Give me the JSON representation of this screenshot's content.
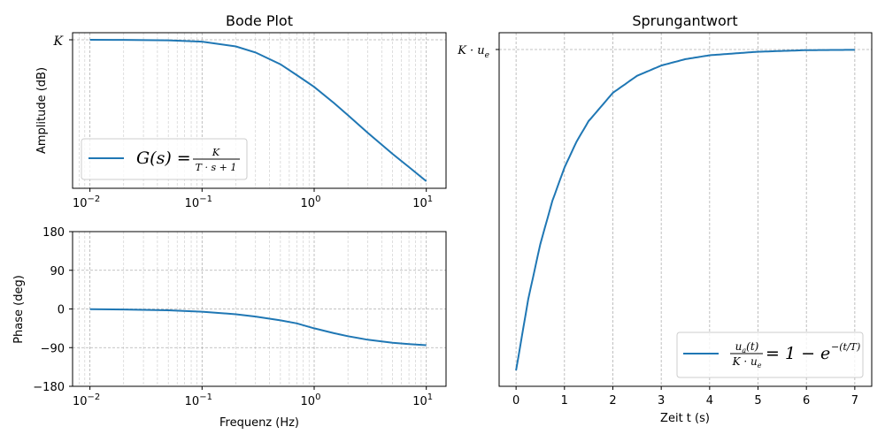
{
  "colors": {
    "series": "#1f77b4"
  },
  "chart_data": [
    {
      "type": "line",
      "title": "Bode Plot",
      "xlabel": "",
      "ylabel": "Amplitude (dB)",
      "xscale": "log",
      "xlim": [
        0.007,
        15
      ],
      "x_tick_labels": [
        "10",
        "10",
        "10",
        "10"
      ],
      "x_tick_exponents": [
        "−2",
        "−1",
        "0",
        "1"
      ],
      "y_tick_labels": [
        "K"
      ],
      "grid": true,
      "legend_position": "lower-left",
      "legend": {
        "lhs": "G(s) =",
        "num": "K",
        "den": "T · s + 1"
      },
      "series": [
        {
          "x": [
            0.01,
            0.02,
            0.05,
            0.1,
            0.2,
            0.3,
            0.5,
            0.7,
            1.0,
            1.5,
            2.0,
            3.0,
            5.0,
            7.0,
            10.0
          ],
          "y_db": [
            0,
            -0.02,
            -0.11,
            -0.4,
            -1.4,
            -2.7,
            -5.2,
            -7.5,
            -10.0,
            -13.4,
            -16.0,
            -19.7,
            -24.2,
            -27.0,
            -30.0
          ]
        }
      ]
    },
    {
      "type": "line",
      "title": "",
      "xlabel": "Frequenz (Hz)",
      "ylabel": "Phase (deg)",
      "xscale": "log",
      "xlim": [
        0.007,
        15
      ],
      "ylim": [
        -180,
        180
      ],
      "x_tick_labels": [
        "10",
        "10",
        "10",
        "10"
      ],
      "x_tick_exponents": [
        "−2",
        "−1",
        "0",
        "1"
      ],
      "y_tick_labels": [
        "180",
        "90",
        "0",
        "−90",
        "−180"
      ],
      "grid": true,
      "series": [
        {
          "x": [
            0.01,
            0.02,
            0.05,
            0.1,
            0.2,
            0.3,
            0.5,
            0.7,
            1.0,
            1.5,
            2.0,
            3.0,
            5.0,
            7.0,
            10.0
          ],
          "y": [
            -0.6,
            -1.3,
            -3.1,
            -6.3,
            -12.3,
            -17.7,
            -26.6,
            -33.6,
            -45.0,
            -56.3,
            -63.4,
            -71.6,
            -78.7,
            -81.9,
            -84.3
          ]
        }
      ]
    },
    {
      "type": "line",
      "title": "Sprungantwort",
      "xlabel": "Zeit t (s)",
      "ylabel": "",
      "xlim": [
        -0.35,
        7.35
      ],
      "ylim": [
        -0.05,
        1.05
      ],
      "x_tick_labels": [
        "0",
        "1",
        "2",
        "3",
        "4",
        "5",
        "6",
        "7"
      ],
      "y_tick_labels": [
        "K · u"
      ],
      "y_tick_subscript": "e",
      "grid": true,
      "legend_position": "lower-right",
      "legend": {
        "num": "u",
        "num_sub": "a",
        "num_tail": "(t)",
        "den": "K · u",
        "den_sub": "e",
        "rhs": "= 1 − e",
        "exp": "−(t/T)"
      },
      "series": [
        {
          "x": [
            0,
            0.25,
            0.5,
            0.75,
            1,
            1.25,
            1.5,
            2,
            2.5,
            3,
            3.5,
            4,
            5,
            6,
            7
          ],
          "y": [
            0,
            0.221,
            0.393,
            0.528,
            0.632,
            0.713,
            0.777,
            0.865,
            0.918,
            0.95,
            0.97,
            0.982,
            0.993,
            0.998,
            0.999
          ]
        }
      ]
    }
  ]
}
